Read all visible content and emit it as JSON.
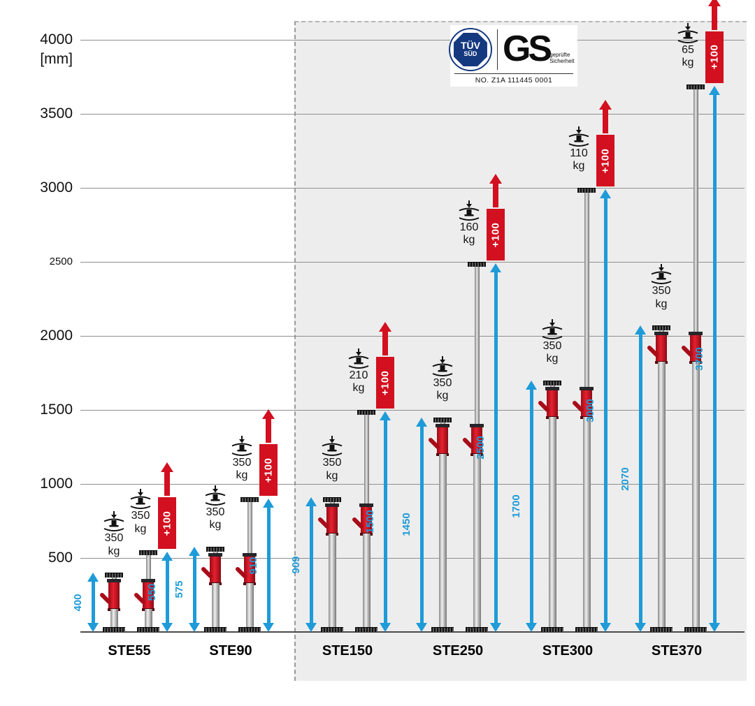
{
  "certification": {
    "tuv_line1": "TÜV",
    "tuv_line2": "SÜD",
    "gs_label": "GS",
    "gs_subtitle": "geprüfte Sicherheit",
    "cert_number": "NO. Z1A 111445 0001"
  },
  "chart_data": {
    "type": "bar",
    "axis": {
      "unit_label": "[mm]",
      "ticks": [
        4000,
        3500,
        3000,
        2500,
        2000,
        1500,
        1000,
        500
      ],
      "ymin": 0,
      "ymax": 4000,
      "grid": true
    },
    "plus_label": "+100",
    "load_unit": "kg",
    "products": [
      {
        "name": "STE55",
        "min_height_mm": 400,
        "max_height_mm": 550,
        "load_at_min_kg": 350,
        "load_at_max_kg": 350,
        "highlighted": false
      },
      {
        "name": "STE90",
        "min_height_mm": 575,
        "max_height_mm": 910,
        "load_at_min_kg": 350,
        "load_at_max_kg": 350,
        "highlighted": false
      },
      {
        "name": "STE150",
        "min_height_mm": 909,
        "max_height_mm": 1500,
        "load_at_min_kg": 350,
        "load_at_max_kg": 210,
        "highlighted": true
      },
      {
        "name": "STE250",
        "min_height_mm": 1450,
        "max_height_mm": 2500,
        "load_at_min_kg": 350,
        "load_at_max_kg": 160,
        "highlighted": true
      },
      {
        "name": "STE300",
        "min_height_mm": 1700,
        "max_height_mm": 3000,
        "load_at_min_kg": 350,
        "load_at_max_kg": 110,
        "highlighted": true
      },
      {
        "name": "STE370",
        "min_height_mm": 2070,
        "max_height_mm": 3700,
        "load_at_min_kg": 350,
        "load_at_max_kg": 65,
        "highlighted": true
      }
    ]
  }
}
